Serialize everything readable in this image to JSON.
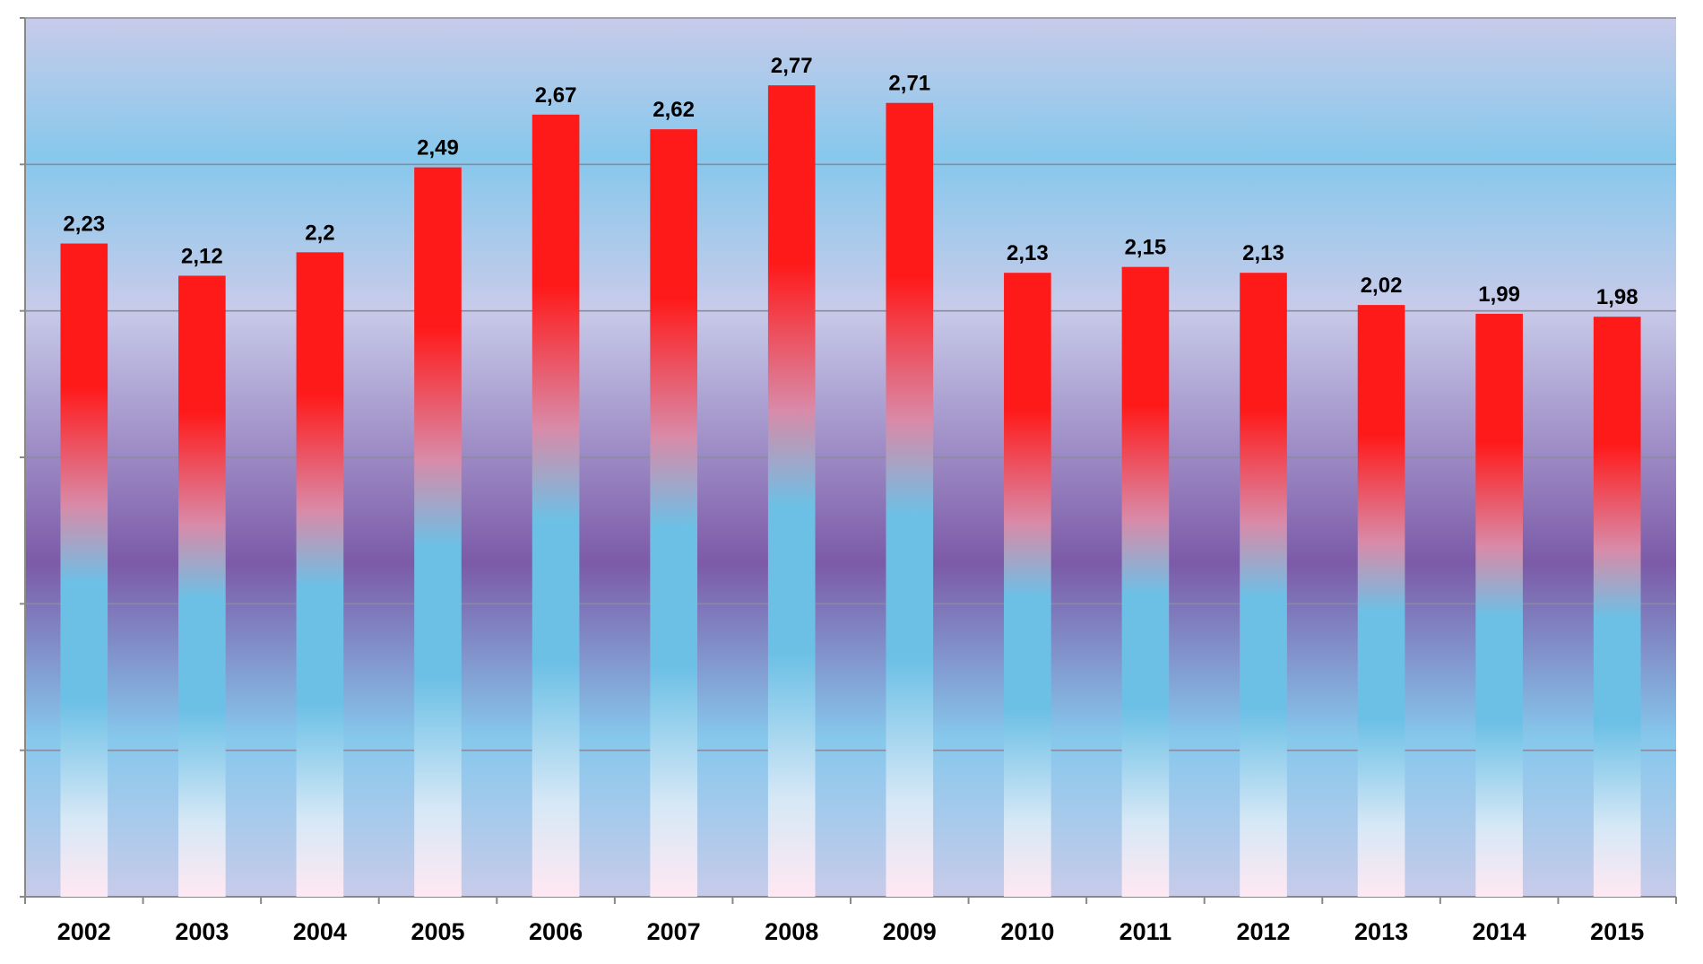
{
  "chart_data": {
    "type": "bar",
    "categories": [
      "2002",
      "2003",
      "2004",
      "2005",
      "2006",
      "2007",
      "2008",
      "2009",
      "2010",
      "2011",
      "2012",
      "2013",
      "2014",
      "2015"
    ],
    "values": [
      2.23,
      2.12,
      2.2,
      2.49,
      2.67,
      2.62,
      2.77,
      2.71,
      2.13,
      2.15,
      2.13,
      2.02,
      1.99,
      1.98
    ],
    "value_labels": [
      "2,23",
      "2,12",
      "2,2",
      "2,49",
      "2,67",
      "2,62",
      "2,77",
      "2,71",
      "2,13",
      "2,15",
      "2,13",
      "2,02",
      "1,99",
      "1,98"
    ],
    "title": "",
    "xlabel": "",
    "ylabel": "",
    "ylim": [
      0,
      3
    ],
    "y_gridline_step": 0.5,
    "y_tick_labels_visible": false,
    "grid": true,
    "legend": "none",
    "colors": {
      "bar_top": "#ff1a1a",
      "bar_mid": "#6cc0e6",
      "bar_bottom": "#ffe8f2",
      "plot_light": "#c8cbea",
      "plot_blue": "#86c8ec",
      "plot_purple": "#7c5aa8",
      "gridline": "#8a8a9e",
      "axis": "#888888"
    }
  }
}
